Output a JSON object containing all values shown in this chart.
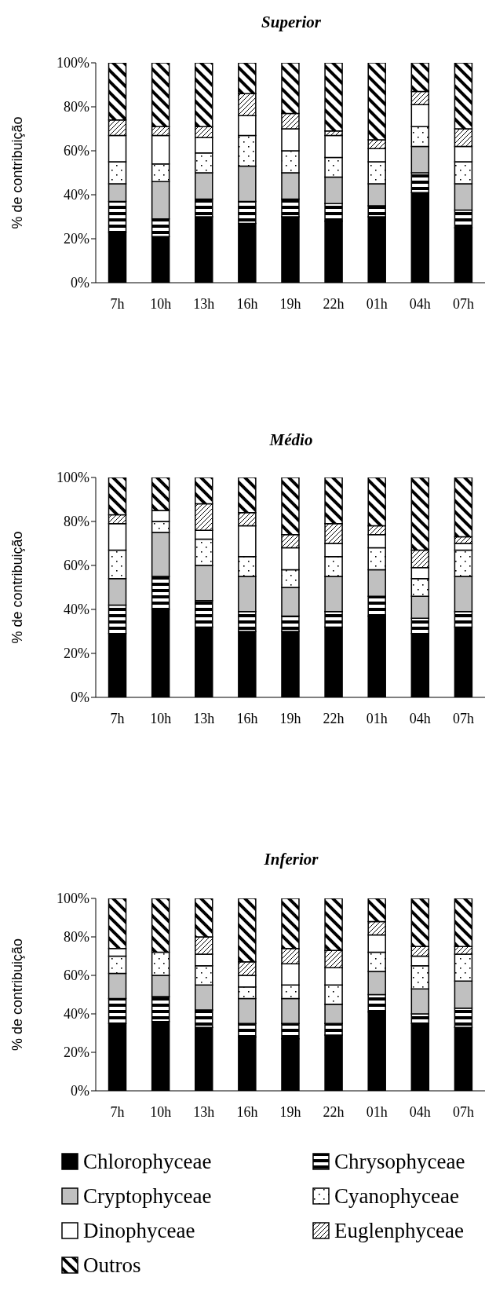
{
  "chart_data": [
    {
      "type": "bar",
      "stacked": true,
      "title": "Superior",
      "ylabel": "% de contribuição",
      "categories": [
        "7h",
        "10h",
        "13h",
        "16h",
        "19h",
        "22h",
        "01h",
        "04h",
        "07h"
      ],
      "ylim": [
        0,
        100
      ],
      "yticks": [
        {
          "value": 0,
          "label": "0%"
        },
        {
          "value": 20,
          "label": "20%"
        },
        {
          "value": 40,
          "label": "40%"
        },
        {
          "value": 60,
          "label": "60%"
        },
        {
          "value": 80,
          "label": "80%"
        },
        {
          "value": 100,
          "label": "100%"
        }
      ],
      "series": [
        {
          "color": "#000000",
          "values": [
            23,
            21,
            30,
            27,
            30,
            28,
            30,
            41,
            25
          ]
        },
        {
          "color": "#000000",
          "values": [
            14,
            8,
            8,
            10,
            8,
            8,
            5,
            9,
            8
          ]
        },
        {
          "color": "#c0c0c0",
          "values": [
            8,
            17,
            12,
            16,
            12,
            12,
            10,
            12,
            12
          ]
        },
        {
          "color": "#000000",
          "values": [
            10,
            8,
            9,
            14,
            10,
            9,
            10,
            9,
            10
          ]
        },
        {
          "color": "#ffffff",
          "values": [
            12,
            13,
            7,
            9,
            10,
            10,
            6,
            10,
            7
          ]
        },
        {
          "color": "#000000",
          "values": [
            7,
            4,
            5,
            10,
            7,
            2,
            4,
            6,
            8
          ]
        },
        {
          "color": "#000000",
          "values": [
            26,
            29,
            29,
            14,
            23,
            31,
            35,
            13,
            30
          ]
        }
      ]
    },
    {
      "type": "bar",
      "stacked": true,
      "title": "Médio",
      "ylabel": "% de contribuição",
      "categories": [
        "7h",
        "10h",
        "13h",
        "16h",
        "19h",
        "22h",
        "01h",
        "04h",
        "07h"
      ],
      "ylim": [
        0,
        100
      ],
      "yticks": [
        {
          "value": 0,
          "label": "0%"
        },
        {
          "value": 20,
          "label": "20%"
        },
        {
          "value": 40,
          "label": "40%"
        },
        {
          "value": 60,
          "label": "60%"
        },
        {
          "value": 80,
          "label": "80%"
        },
        {
          "value": 100,
          "label": "100%"
        }
      ],
      "series": [
        {
          "color": "#000000",
          "values": [
            29,
            40,
            32,
            30,
            30,
            32,
            37,
            29,
            32
          ]
        },
        {
          "color": "#000000",
          "values": [
            13,
            15,
            12,
            9,
            7,
            7,
            9,
            7,
            7
          ]
        },
        {
          "color": "#c0c0c0",
          "values": [
            12,
            20,
            16,
            16,
            13,
            16,
            12,
            10,
            16
          ]
        },
        {
          "color": "#000000",
          "values": [
            13,
            5,
            12,
            9,
            8,
            9,
            10,
            8,
            12
          ]
        },
        {
          "color": "#ffffff",
          "values": [
            12,
            5,
            4,
            14,
            10,
            6,
            6,
            5,
            3
          ]
        },
        {
          "color": "#000000",
          "values": [
            4,
            0,
            12,
            6,
            6,
            9,
            4,
            8,
            3
          ]
        },
        {
          "color": "#000000",
          "values": [
            17,
            15,
            12,
            16,
            26,
            21,
            22,
            33,
            27
          ]
        }
      ]
    },
    {
      "type": "bar",
      "stacked": true,
      "title": "Inferior",
      "ylabel": "% de contribuição",
      "categories": [
        "7h",
        "10h",
        "13h",
        "16h",
        "19h",
        "22h",
        "01h",
        "04h",
        "07h"
      ],
      "ylim": [
        0,
        100
      ],
      "yticks": [
        {
          "value": 0,
          "label": "0%"
        },
        {
          "value": 20,
          "label": "20%"
        },
        {
          "value": 40,
          "label": "40%"
        },
        {
          "value": 60,
          "label": "60%"
        },
        {
          "value": 80,
          "label": "80%"
        },
        {
          "value": 100,
          "label": "100%"
        }
      ],
      "legend": "bottom",
      "series": [
        {
          "name": "Chlorophyceae",
          "color": "#000000",
          "values": [
            35,
            36,
            33,
            28,
            27,
            29,
            41,
            35,
            33
          ]
        },
        {
          "name": "Chrysophyceae",
          "color": "#000000",
          "values": [
            13,
            13,
            9,
            7,
            8,
            6,
            9,
            5,
            10
          ]
        },
        {
          "name": "Cryptophyceae",
          "color": "#c0c0c0",
          "values": [
            13,
            11,
            13,
            13,
            13,
            10,
            12,
            13,
            14
          ]
        },
        {
          "name": "Cyanophyceae",
          "color": "#000000",
          "values": [
            9,
            12,
            10,
            6,
            7,
            10,
            10,
            12,
            14
          ]
        },
        {
          "name": "Dinophyceae",
          "color": "#ffffff",
          "values": [
            4,
            0,
            6,
            6,
            11,
            9,
            9,
            5,
            0
          ]
        },
        {
          "name": "Euglenphyceae",
          "color": "#000000",
          "values": [
            0,
            0,
            9,
            7,
            8,
            9,
            7,
            5,
            4
          ]
        },
        {
          "name": "Outros",
          "color": "#000000",
          "values": [
            26,
            28,
            20,
            33,
            26,
            27,
            12,
            25,
            25
          ]
        }
      ]
    }
  ]
}
